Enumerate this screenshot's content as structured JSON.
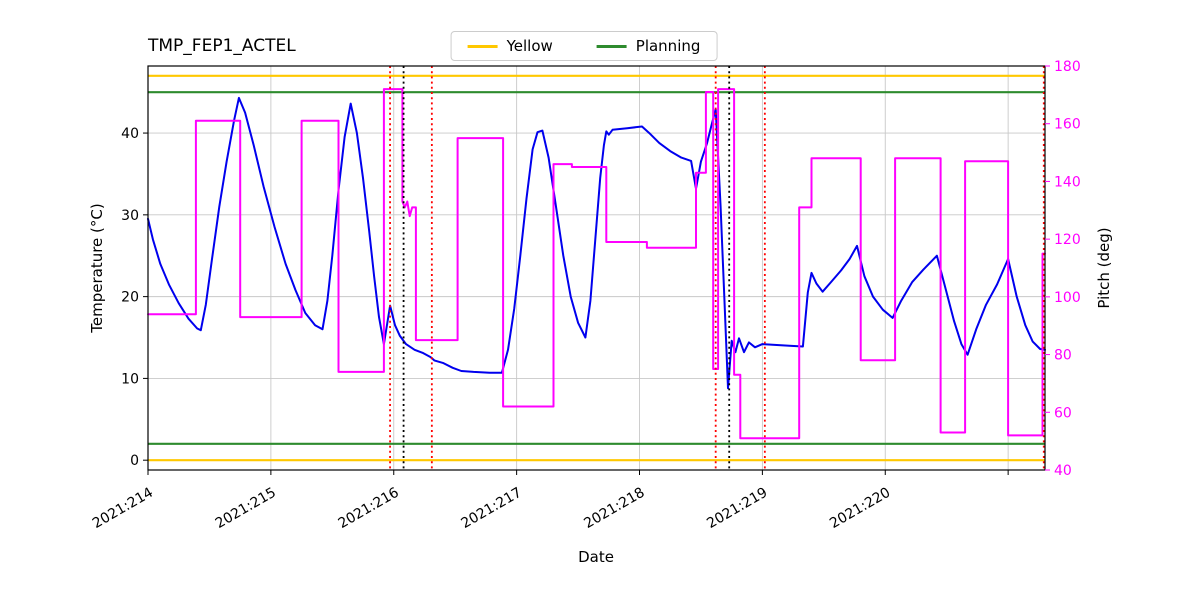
{
  "chart_data": {
    "type": "line",
    "title": "TMP_FEP1_ACTEL",
    "xlabel": "Date",
    "ylabel_left": "Temperature (°C)",
    "ylabel_right": "Pitch (deg)",
    "legend": [
      {
        "label": "Yellow",
        "color": "#ffc800"
      },
      {
        "label": "Planning",
        "color": "#2e8b2e"
      }
    ],
    "colors": {
      "temperature_line": "#0000ee",
      "pitch_line": "#ff00ff",
      "yellow_limit": "#ffc800",
      "planning_limit": "#2e8b2e",
      "red_marker": "#ff0000",
      "black_marker": "#000000",
      "grid": "#c8c8c8",
      "spine": "#000000"
    },
    "x_range": [
      214.0,
      221.3
    ],
    "y_left_range": [
      -1.2,
      48.2
    ],
    "y_right_range": [
      40,
      180
    ],
    "grid": true,
    "legend_position": "top-center",
    "x_ticks": [
      {
        "value": 214,
        "label": "2021:214"
      },
      {
        "value": 215,
        "label": "2021:215"
      },
      {
        "value": 216,
        "label": "2021:216"
      },
      {
        "value": 217,
        "label": "2021:217"
      },
      {
        "value": 218,
        "label": "2021:218"
      },
      {
        "value": 219,
        "label": "2021:219"
      },
      {
        "value": 220,
        "label": "2021:220"
      },
      {
        "value": 221,
        "label": ""
      }
    ],
    "y_left_ticks": [
      {
        "value": 0,
        "label": "0"
      },
      {
        "value": 10,
        "label": "10"
      },
      {
        "value": 20,
        "label": "20"
      },
      {
        "value": 30,
        "label": "30"
      },
      {
        "value": 40,
        "label": "40"
      }
    ],
    "y_right_ticks": [
      {
        "value": 40,
        "label": "40"
      },
      {
        "value": 60,
        "label": "60"
      },
      {
        "value": 80,
        "label": "80"
      },
      {
        "value": 100,
        "label": "100"
      },
      {
        "value": 120,
        "label": "120"
      },
      {
        "value": 140,
        "label": "140"
      },
      {
        "value": 160,
        "label": "160"
      },
      {
        "value": 180,
        "label": "180"
      }
    ],
    "yellow_limits": [
      47.0,
      0.0
    ],
    "planning_limits": [
      45.0,
      2.0
    ],
    "vlines": [
      {
        "x": 215.97,
        "color": "#ff0000"
      },
      {
        "x": 216.08,
        "color": "#000000"
      },
      {
        "x": 216.31,
        "color": "#ff0000"
      },
      {
        "x": 218.62,
        "color": "#ff0000"
      },
      {
        "x": 218.73,
        "color": "#000000"
      },
      {
        "x": 219.02,
        "color": "#ff0000"
      },
      {
        "x": 221.29,
        "color": "#ff0000"
      }
    ],
    "series": [
      {
        "name": "Temperature",
        "axis": "left",
        "color": "#0000ee",
        "points": [
          [
            214.0,
            29.5
          ],
          [
            214.04,
            27.0
          ],
          [
            214.1,
            24.0
          ],
          [
            214.17,
            21.5
          ],
          [
            214.25,
            19.2
          ],
          [
            214.33,
            17.3
          ],
          [
            214.4,
            16.1
          ],
          [
            214.43,
            15.9
          ],
          [
            214.47,
            19.0
          ],
          [
            214.52,
            24.5
          ],
          [
            214.58,
            31.0
          ],
          [
            214.64,
            36.5
          ],
          [
            214.7,
            41.5
          ],
          [
            214.74,
            44.3
          ],
          [
            214.79,
            42.5
          ],
          [
            214.86,
            38.5
          ],
          [
            214.94,
            33.5
          ],
          [
            215.03,
            28.5
          ],
          [
            215.12,
            24.0
          ],
          [
            215.2,
            20.8
          ],
          [
            215.28,
            18.0
          ],
          [
            215.36,
            16.5
          ],
          [
            215.42,
            16.0
          ],
          [
            215.46,
            19.5
          ],
          [
            215.5,
            25.0
          ],
          [
            215.55,
            33.0
          ],
          [
            215.6,
            39.5
          ],
          [
            215.65,
            43.6
          ],
          [
            215.7,
            40.0
          ],
          [
            215.75,
            34.5
          ],
          [
            215.8,
            28.0
          ],
          [
            215.84,
            22.5
          ],
          [
            215.88,
            17.5
          ],
          [
            215.92,
            14.2
          ],
          [
            215.97,
            18.9
          ],
          [
            216.01,
            16.5
          ],
          [
            216.05,
            15.2
          ],
          [
            216.1,
            14.2
          ],
          [
            216.17,
            13.5
          ],
          [
            216.24,
            13.1
          ],
          [
            216.3,
            12.6
          ],
          [
            216.33,
            12.2
          ],
          [
            216.4,
            11.9
          ],
          [
            216.48,
            11.3
          ],
          [
            216.55,
            10.9
          ],
          [
            216.65,
            10.8
          ],
          [
            216.78,
            10.7
          ],
          [
            216.88,
            10.7
          ],
          [
            216.93,
            13.5
          ],
          [
            216.98,
            18.5
          ],
          [
            217.03,
            25.0
          ],
          [
            217.08,
            32.0
          ],
          [
            217.13,
            38.0
          ],
          [
            217.17,
            40.1
          ],
          [
            217.21,
            40.3
          ],
          [
            217.26,
            37.0
          ],
          [
            217.32,
            31.0
          ],
          [
            217.38,
            25.0
          ],
          [
            217.44,
            20.0
          ],
          [
            217.5,
            16.8
          ],
          [
            217.56,
            15.0
          ],
          [
            217.6,
            19.5
          ],
          [
            217.64,
            27.0
          ],
          [
            217.68,
            34.5
          ],
          [
            217.71,
            38.5
          ],
          [
            217.73,
            40.2
          ],
          [
            217.75,
            39.8
          ],
          [
            217.78,
            40.4
          ],
          [
            217.9,
            40.6
          ],
          [
            218.02,
            40.8
          ],
          [
            218.08,
            40.0
          ],
          [
            218.16,
            38.8
          ],
          [
            218.25,
            37.8
          ],
          [
            218.34,
            37.0
          ],
          [
            218.42,
            36.6
          ],
          [
            218.46,
            33.2
          ],
          [
            218.5,
            36.5
          ],
          [
            218.55,
            38.8
          ],
          [
            218.59,
            41.2
          ],
          [
            218.62,
            42.9
          ],
          [
            218.66,
            31.0
          ],
          [
            218.69,
            20.0
          ],
          [
            218.72,
            8.8
          ],
          [
            218.75,
            14.6
          ],
          [
            218.78,
            13.2
          ],
          [
            218.81,
            14.9
          ],
          [
            218.85,
            13.2
          ],
          [
            218.89,
            14.4
          ],
          [
            218.94,
            13.8
          ],
          [
            219.0,
            14.2
          ],
          [
            219.1,
            14.1
          ],
          [
            219.22,
            14.0
          ],
          [
            219.33,
            13.9
          ],
          [
            219.37,
            20.5
          ],
          [
            219.4,
            22.9
          ],
          [
            219.44,
            21.6
          ],
          [
            219.49,
            20.6
          ],
          [
            219.56,
            21.8
          ],
          [
            219.64,
            23.2
          ],
          [
            219.71,
            24.6
          ],
          [
            219.77,
            26.2
          ],
          [
            219.83,
            22.5
          ],
          [
            219.9,
            20.0
          ],
          [
            219.98,
            18.4
          ],
          [
            220.06,
            17.4
          ],
          [
            220.13,
            19.5
          ],
          [
            220.22,
            21.8
          ],
          [
            220.31,
            23.3
          ],
          [
            220.42,
            25.0
          ],
          [
            220.49,
            21.0
          ],
          [
            220.56,
            17.0
          ],
          [
            220.62,
            14.2
          ],
          [
            220.67,
            12.9
          ],
          [
            220.74,
            16.0
          ],
          [
            220.82,
            19.0
          ],
          [
            220.91,
            21.5
          ],
          [
            221.0,
            24.6
          ],
          [
            221.07,
            20.0
          ],
          [
            221.14,
            16.5
          ],
          [
            221.2,
            14.5
          ],
          [
            221.26,
            13.6
          ],
          [
            221.3,
            13.5
          ]
        ]
      },
      {
        "name": "Pitch",
        "axis": "right",
        "color": "#ff00ff",
        "points": [
          [
            214.0,
            94
          ],
          [
            214.39,
            94
          ],
          [
            214.39,
            161
          ],
          [
            214.75,
            161
          ],
          [
            214.75,
            93
          ],
          [
            215.25,
            93
          ],
          [
            215.25,
            161
          ],
          [
            215.55,
            161
          ],
          [
            215.55,
            74
          ],
          [
            215.92,
            74
          ],
          [
            215.92,
            172
          ],
          [
            216.07,
            172
          ],
          [
            216.07,
            133
          ],
          [
            216.09,
            131
          ],
          [
            216.11,
            133
          ],
          [
            216.13,
            128
          ],
          [
            216.15,
            131
          ],
          [
            216.18,
            131
          ],
          [
            216.18,
            85
          ],
          [
            216.52,
            85
          ],
          [
            216.52,
            155
          ],
          [
            216.89,
            155
          ],
          [
            216.89,
            62
          ],
          [
            217.3,
            62
          ],
          [
            217.3,
            146
          ],
          [
            217.45,
            146
          ],
          [
            217.45,
            145
          ],
          [
            217.73,
            145
          ],
          [
            217.73,
            119
          ],
          [
            218.06,
            119
          ],
          [
            218.06,
            117
          ],
          [
            218.46,
            117
          ],
          [
            218.46,
            143
          ],
          [
            218.54,
            143
          ],
          [
            218.54,
            171
          ],
          [
            218.6,
            171
          ],
          [
            218.6,
            75
          ],
          [
            218.64,
            75
          ],
          [
            218.64,
            172
          ],
          [
            218.77,
            172
          ],
          [
            218.77,
            73
          ],
          [
            218.82,
            73
          ],
          [
            218.82,
            51
          ],
          [
            219.3,
            51
          ],
          [
            219.3,
            131
          ],
          [
            219.4,
            131
          ],
          [
            219.4,
            148
          ],
          [
            219.8,
            148
          ],
          [
            219.8,
            78
          ],
          [
            220.08,
            78
          ],
          [
            220.08,
            148
          ],
          [
            220.45,
            148
          ],
          [
            220.45,
            53
          ],
          [
            220.65,
            53
          ],
          [
            220.65,
            147
          ],
          [
            221.0,
            147
          ],
          [
            221.0,
            52
          ],
          [
            221.28,
            52
          ],
          [
            221.28,
            115
          ],
          [
            221.3,
            115
          ]
        ]
      }
    ]
  }
}
